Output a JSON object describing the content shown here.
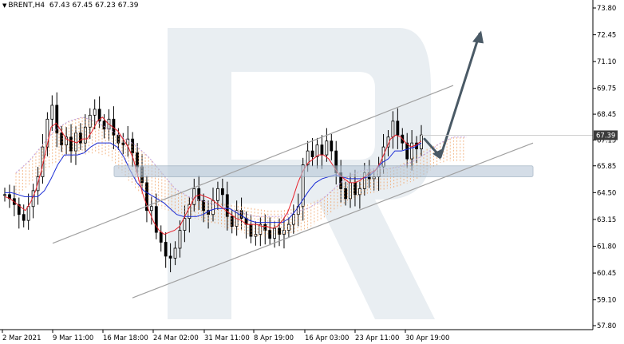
{
  "header": {
    "symbol": "BRENT,H4",
    "ohlc": "67.43 67.45 67.23 67.39"
  },
  "colors": {
    "bull_candle": "#000000",
    "bear_candle": "#000000",
    "tenkan": "#e8202a",
    "kijun": "#1a2cd6",
    "cloud_a": "#f0a060",
    "cloud_b": "#c0a0e0",
    "channel": "#a0a0a0",
    "zone": "#b8c8d8",
    "arrow": "#4a5a66",
    "price_tag": "#3a3a3a"
  },
  "chart_data": {
    "type": "candlestick",
    "y_ticks": [
      "73.80",
      "72.45",
      "71.10",
      "69.75",
      "68.45",
      "67.15",
      "65.85",
      "64.50",
      "63.15",
      "61.80",
      "60.45",
      "59.10",
      "57.80"
    ],
    "x_ticks": [
      "2 Mar 2021",
      "9 Mar 11:00",
      "16 Mar 18:00",
      "24 Mar 02:00",
      "31 Mar 11:00",
      "8 Apr 19:00",
      "16 Apr 03:00",
      "23 Apr 11:00",
      "30 Apr 19:00"
    ],
    "ylim": [
      57.8,
      73.8
    ],
    "current_price": "67.39",
    "close_series": [
      64.4,
      64.2,
      63.9,
      63.4,
      63.1,
      63.8,
      64.6,
      65.3,
      66.8,
      68.2,
      68.9,
      67.5,
      66.9,
      67.3,
      66.6,
      67.5,
      67.0,
      67.8,
      68.4,
      68.7,
      68.1,
      67.7,
      68.2,
      67.4,
      67.0,
      66.9,
      67.2,
      66.5,
      65.8,
      65.0,
      63.6,
      63.8,
      62.5,
      62.0,
      61.3,
      61.2,
      61.7,
      62.6,
      63.2,
      63.9,
      64.7,
      64.1,
      63.6,
      63.4,
      64.1,
      64.7,
      64.4,
      63.3,
      62.8,
      63.6,
      63.2,
      62.9,
      62.3,
      62.4,
      62.9,
      62.6,
      62.2,
      62.7,
      62.4,
      62.6,
      62.9,
      63.4,
      63.8,
      65.9,
      66.6,
      66.3,
      66.9,
      66.4,
      67.1,
      66.6,
      65.5,
      64.7,
      64.2,
      65.0,
      64.4,
      64.7,
      65.5,
      65.2,
      65.3,
      65.8,
      66.8,
      67.3,
      68.1,
      67.4,
      67.0,
      66.2,
      67.0,
      66.7,
      67.4
    ],
    "tenkan": [
      64.3,
      64.2,
      64.0,
      63.8,
      63.6,
      64.0,
      64.6,
      65.5,
      66.6,
      67.8,
      68.0,
      67.6,
      67.2,
      67.1,
      67.0,
      67.2,
      67.2,
      67.6,
      68.1,
      68.3,
      68.0,
      67.8,
      67.6,
      67.2,
      66.8,
      66.2,
      65.2,
      64.3,
      63.6,
      63.0,
      62.6,
      62.4,
      62.5,
      62.6,
      62.8,
      63.3,
      63.8,
      64.3,
      64.4,
      64.3,
      64.2,
      64.0,
      63.8,
      63.6,
      63.4,
      63.2,
      63.1,
      62.9,
      62.9,
      62.9,
      62.8,
      62.8,
      62.7,
      62.8,
      63.1,
      63.5,
      64.2,
      65.0,
      65.6,
      66.0,
      66.2,
      66.4,
      66.4,
      66.2,
      65.8,
      65.4,
      65.2,
      65.0,
      65.0,
      65.1,
      65.3,
      65.5,
      65.6,
      66.0,
      66.6,
      67.2,
      67.4,
      67.3,
      67.0,
      66.8,
      66.9,
      67.1
    ],
    "kijun": [
      64.5,
      64.5,
      64.4,
      64.3,
      64.3,
      64.3,
      64.6,
      65.2,
      65.9,
      66.4,
      66.4,
      66.4,
      66.5,
      66.8,
      67.0,
      67.0,
      67.0,
      66.8,
      66.3,
      65.6,
      65.0,
      64.6,
      64.4,
      64.2,
      64.0,
      63.7,
      63.4,
      63.3,
      63.3,
      63.3,
      63.4,
      63.6,
      63.7,
      63.7,
      63.7,
      63.5,
      63.3,
      63.1,
      63.0,
      63.0,
      63.0,
      63.0,
      63.0,
      63.2,
      63.6,
      64.1,
      64.6,
      65.0,
      65.2,
      65.3,
      65.4,
      65.3,
      65.2,
      65.2,
      65.2,
      65.3,
      65.6,
      66.0,
      66.2,
      66.6,
      66.6,
      66.7,
      66.8,
      67.0
    ],
    "cloud_span_a": [
      65.0,
      65.6,
      66.4,
      67.2,
      67.6,
      67.8,
      67.6,
      67.2,
      66.8,
      66.4,
      65.8,
      65.0,
      64.2,
      63.8,
      63.6,
      63.4,
      63.2,
      63.0,
      62.8,
      62.8,
      62.8,
      63.0,
      63.2,
      63.6,
      64.2,
      64.8,
      65.1,
      65.2,
      65.2,
      65.3,
      65.6,
      66.0,
      66.5,
      66.8,
      66.8
    ],
    "cloud_span_b": [
      64.8,
      65.4,
      66.0,
      66.5,
      66.8,
      66.9,
      67.0,
      66.8,
      66.0,
      65.2,
      64.6,
      64.2,
      64.0,
      63.8,
      63.6,
      63.5,
      63.4,
      63.3,
      63.2,
      63.1,
      63.1,
      63.2,
      63.4,
      63.7,
      64.1,
      64.5,
      64.8,
      65.0,
      65.2,
      65.4,
      65.8,
      66.2,
      66.5,
      66.6,
      66.6
    ],
    "support_resistance_zone": [
      65.3,
      65.85
    ],
    "channel_upper": [
      [
        0.0,
        61.95
      ],
      [
        1.0,
        69.9
      ]
    ],
    "channel_lower": [
      [
        0.0,
        59.2
      ],
      [
        1.0,
        67.0
      ]
    ],
    "forecast_path": [
      67.2,
      66.3,
      72.5
    ]
  }
}
